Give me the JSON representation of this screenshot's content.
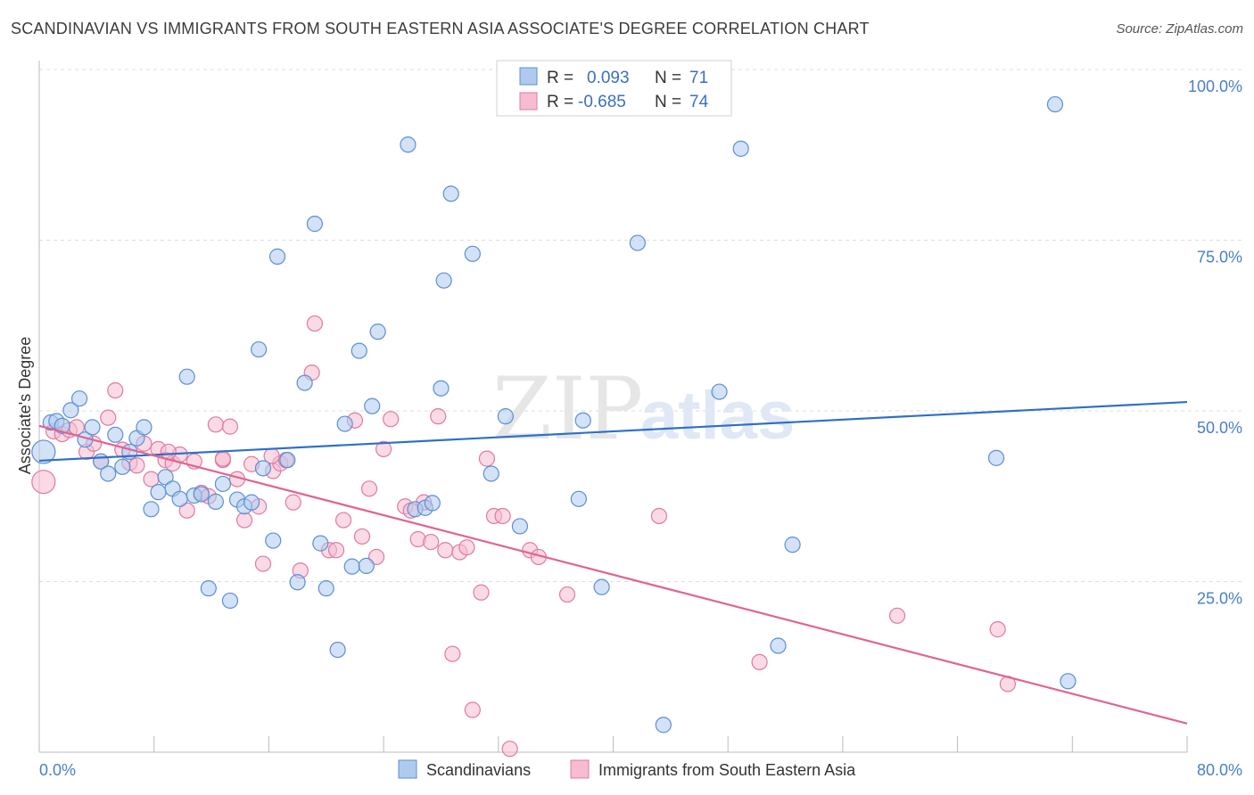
{
  "title": "SCANDINAVIAN VS IMMIGRANTS FROM SOUTH EASTERN ASIA ASSOCIATE'S DEGREE CORRELATION CHART",
  "source": "Source: ZipAtlas.com",
  "watermark": {
    "zip": "ZIP",
    "atlas": "atlas"
  },
  "colors": {
    "blue_fill": "#aecbef",
    "blue_stroke": "#5b8fd6",
    "blue_line": "#2e6fcc",
    "pink_fill": "#f6bcd0",
    "pink_stroke": "#e07aa0",
    "pink_line": "#e0648f",
    "grid": "#dddddd",
    "tick_text": "#4a7ec9"
  },
  "legend_box": {
    "r_label": "R =",
    "n_label": "N =",
    "rows": [
      {
        "r": "0.093",
        "n": "71"
      },
      {
        "r": "-0.685",
        "n": "74"
      }
    ]
  },
  "chart_data": {
    "type": "scatter",
    "title": "SCANDINAVIAN VS IMMIGRANTS FROM SOUTH EASTERN ASIA ASSOCIATE'S DEGREE CORRELATION CHART",
    "xlabel": "",
    "ylabel": "Associate's Degree",
    "xlim": [
      0,
      80
    ],
    "ylim": [
      0,
      100
    ],
    "x_tick_labels": [
      "0.0%",
      "80.0%"
    ],
    "y_tick_labels": [
      "25.0%",
      "50.0%",
      "75.0%",
      "100.0%"
    ],
    "y_ticks": [
      25,
      50,
      75,
      100
    ],
    "grid": true,
    "legend_position": "bottom",
    "series": [
      {
        "name": "Scandinavians",
        "color": "#aecbef",
        "trend": {
          "x": [
            0,
            80
          ],
          "y": [
            42.7,
            51.3
          ]
        },
        "points": [
          [
            0.3,
            44.0
          ],
          [
            0.8,
            48.3
          ],
          [
            1.2,
            48.5
          ],
          [
            1.6,
            47.8
          ],
          [
            2.2,
            50.1
          ],
          [
            2.8,
            51.8
          ],
          [
            3.2,
            45.8
          ],
          [
            3.7,
            47.6
          ],
          [
            4.3,
            42.6
          ],
          [
            4.8,
            40.8
          ],
          [
            5.3,
            46.5
          ],
          [
            5.8,
            41.8
          ],
          [
            6.3,
            44.0
          ],
          [
            6.8,
            46.0
          ],
          [
            7.3,
            47.6
          ],
          [
            7.8,
            35.6
          ],
          [
            8.3,
            38.1
          ],
          [
            8.8,
            40.3
          ],
          [
            9.3,
            38.6
          ],
          [
            9.8,
            37.1
          ],
          [
            10.3,
            55.0
          ],
          [
            10.8,
            37.6
          ],
          [
            11.3,
            37.8
          ],
          [
            11.8,
            24.0
          ],
          [
            12.3,
            36.7
          ],
          [
            12.8,
            39.3
          ],
          [
            13.3,
            22.2
          ],
          [
            13.8,
            37.0
          ],
          [
            14.3,
            36.0
          ],
          [
            14.8,
            36.6
          ],
          [
            15.3,
            59.0
          ],
          [
            15.6,
            41.6
          ],
          [
            16.3,
            31.0
          ],
          [
            16.6,
            72.6
          ],
          [
            17.3,
            42.8
          ],
          [
            18.0,
            24.9
          ],
          [
            18.5,
            54.1
          ],
          [
            19.2,
            77.4
          ],
          [
            19.6,
            30.6
          ],
          [
            20.0,
            24.0
          ],
          [
            20.8,
            15.0
          ],
          [
            21.3,
            48.1
          ],
          [
            21.8,
            27.2
          ],
          [
            22.3,
            58.8
          ],
          [
            22.8,
            27.3
          ],
          [
            23.2,
            50.7
          ],
          [
            23.6,
            61.6
          ],
          [
            25.7,
            89.0
          ],
          [
            26.2,
            35.6
          ],
          [
            26.9,
            35.8
          ],
          [
            27.4,
            36.5
          ],
          [
            28.0,
            53.3
          ],
          [
            28.2,
            69.1
          ],
          [
            28.7,
            81.8
          ],
          [
            30.2,
            73.0
          ],
          [
            31.5,
            40.8
          ],
          [
            32.5,
            49.2
          ],
          [
            33.5,
            33.1
          ],
          [
            35.0,
            94.6
          ],
          [
            37.6,
            37.1
          ],
          [
            37.9,
            48.6
          ],
          [
            39.2,
            24.2
          ],
          [
            41.7,
            74.6
          ],
          [
            43.5,
            4.0
          ],
          [
            47.4,
            52.8
          ],
          [
            48.9,
            88.4
          ],
          [
            51.5,
            15.6
          ],
          [
            52.5,
            30.4
          ],
          [
            66.7,
            43.1
          ],
          [
            70.8,
            94.9
          ],
          [
            71.7,
            10.4
          ]
        ]
      },
      {
        "name": "Immigrants from South Eastern Asia",
        "color": "#f6bcd0",
        "trend": {
          "x": [
            0,
            80
          ],
          "y": [
            47.8,
            4.2
          ]
        },
        "points": [
          [
            0.3,
            39.6
          ],
          [
            1.0,
            47.0
          ],
          [
            1.6,
            46.6
          ],
          [
            2.1,
            47.2
          ],
          [
            2.6,
            47.6
          ],
          [
            3.3,
            44.0
          ],
          [
            3.8,
            45.2
          ],
          [
            4.3,
            42.6
          ],
          [
            4.8,
            49.0
          ],
          [
            5.3,
            53.0
          ],
          [
            5.8,
            44.3
          ],
          [
            6.3,
            42.4
          ],
          [
            6.8,
            42.0
          ],
          [
            7.3,
            45.2
          ],
          [
            7.8,
            40.0
          ],
          [
            8.3,
            44.4
          ],
          [
            8.8,
            42.8
          ],
          [
            9.3,
            42.3
          ],
          [
            9.8,
            43.6
          ],
          [
            10.3,
            35.4
          ],
          [
            10.8,
            42.6
          ],
          [
            11.3,
            38.0
          ],
          [
            11.8,
            37.5
          ],
          [
            12.3,
            48.0
          ],
          [
            12.8,
            42.8
          ],
          [
            13.3,
            47.7
          ],
          [
            13.8,
            40.0
          ],
          [
            14.3,
            34.0
          ],
          [
            14.8,
            42.2
          ],
          [
            15.3,
            36.0
          ],
          [
            15.6,
            27.6
          ],
          [
            16.3,
            41.2
          ],
          [
            16.8,
            42.3
          ],
          [
            17.2,
            42.8
          ],
          [
            17.7,
            36.6
          ],
          [
            18.2,
            26.6
          ],
          [
            19.0,
            55.6
          ],
          [
            19.2,
            62.8
          ],
          [
            20.2,
            29.6
          ],
          [
            20.7,
            29.6
          ],
          [
            21.2,
            34.0
          ],
          [
            22.0,
            48.6
          ],
          [
            22.5,
            31.6
          ],
          [
            23.0,
            38.6
          ],
          [
            23.5,
            28.6
          ],
          [
            24.0,
            44.4
          ],
          [
            24.5,
            48.8
          ],
          [
            25.5,
            36.0
          ],
          [
            25.9,
            35.4
          ],
          [
            26.4,
            31.2
          ],
          [
            26.8,
            36.6
          ],
          [
            27.3,
            30.8
          ],
          [
            27.8,
            49.2
          ],
          [
            28.3,
            29.6
          ],
          [
            28.8,
            14.4
          ],
          [
            29.3,
            29.3
          ],
          [
            29.8,
            30.0
          ],
          [
            30.2,
            6.2
          ],
          [
            30.8,
            23.4
          ],
          [
            31.2,
            43.0
          ],
          [
            31.7,
            34.6
          ],
          [
            32.3,
            34.6
          ],
          [
            32.8,
            0.5
          ],
          [
            34.2,
            29.6
          ],
          [
            34.8,
            28.6
          ],
          [
            36.8,
            23.1
          ],
          [
            43.2,
            34.6
          ],
          [
            50.2,
            13.2
          ],
          [
            59.8,
            20.0
          ],
          [
            66.8,
            18.0
          ],
          [
            67.5,
            10.0
          ],
          [
            9.0,
            44.0
          ],
          [
            12.8,
            43.0
          ],
          [
            16.2,
            43.4
          ]
        ]
      }
    ]
  }
}
